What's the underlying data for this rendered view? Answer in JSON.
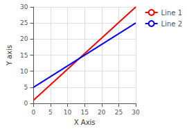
{
  "chart_data": {
    "type": "line",
    "x": [
      0,
      30
    ],
    "series": [
      {
        "name": "Line 1",
        "color": "#ff0000",
        "values": [
          1,
          30
        ]
      },
      {
        "name": "Line 2",
        "color": "#0000ff",
        "values": [
          5,
          25
        ]
      }
    ],
    "xlabel": "X Axis",
    "ylabel": "Y axis",
    "xlim": [
      0,
      30
    ],
    "ylim": [
      0,
      30
    ],
    "xticks": [
      0,
      5,
      10,
      15,
      20,
      25,
      30
    ],
    "yticks": [
      0,
      5,
      10,
      15,
      20,
      25,
      30
    ],
    "grid": true,
    "legend": "right"
  }
}
